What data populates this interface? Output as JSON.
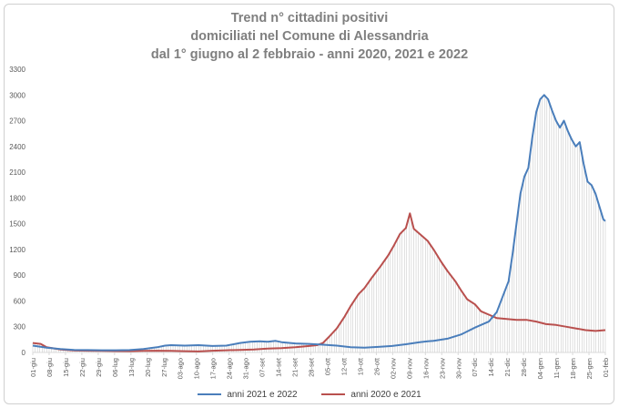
{
  "title_lines": [
    "Trend n° cittadini positivi",
    "domiciliati nel Comune di Alessandria",
    "dal 1° giugno al 2 febbraio - anni 2020, 2021 e 2022"
  ],
  "colors": {
    "series_2021_2022": "#4a7ebb",
    "series_2020_2021": "#b9504e",
    "drop_lines": "#a6a6a6",
    "axis": "#d9d9d9"
  },
  "chart_data": {
    "type": "line",
    "title": "Trend n° cittadini positivi domiciliati nel Comune di Alessandria dal 1° giugno al 2 febbraio - anni 2020, 2021 e 2022",
    "xlabel": "",
    "ylabel": "",
    "ylim": [
      0,
      3300
    ],
    "yticks": [
      0,
      300,
      600,
      900,
      1200,
      1500,
      1800,
      2100,
      2400,
      2700,
      3000,
      3300
    ],
    "x_tick_labels": [
      "01-giu",
      "08-giu",
      "15-giu",
      "22-giu",
      "29-giu",
      "06-lug",
      "13-lug",
      "20-lug",
      "27-lug",
      "03-ago",
      "10-ago",
      "17-ago",
      "24-ago",
      "31-ago",
      "07-set",
      "14-set",
      "21-set",
      "28-set",
      "05-ott",
      "12-ott",
      "19-ott",
      "26-ott",
      "02-nov",
      "09-nov",
      "16-nov",
      "23-nov",
      "30-nov",
      "07-dic",
      "14-dic",
      "21-dic",
      "28-dic",
      "04-gen",
      "11-gen",
      "18-gen",
      "25-gen",
      "01-feb"
    ],
    "x_unit": "days from 01-giu",
    "grid": false,
    "legend_position": "bottom",
    "series": [
      {
        "name": "anni 2021 e 2022",
        "points": [
          [
            0,
            80
          ],
          [
            7,
            55
          ],
          [
            14,
            40
          ],
          [
            21,
            30
          ],
          [
            28,
            28
          ],
          [
            35,
            25
          ],
          [
            42,
            25
          ],
          [
            49,
            28
          ],
          [
            56,
            40
          ],
          [
            63,
            60
          ],
          [
            67,
            80
          ],
          [
            70,
            85
          ],
          [
            77,
            80
          ],
          [
            84,
            85
          ],
          [
            91,
            75
          ],
          [
            98,
            80
          ],
          [
            105,
            110
          ],
          [
            110,
            125
          ],
          [
            115,
            130
          ],
          [
            119,
            125
          ],
          [
            123,
            135
          ],
          [
            126,
            120
          ],
          [
            133,
            105
          ],
          [
            140,
            100
          ],
          [
            147,
            90
          ],
          [
            154,
            80
          ],
          [
            161,
            60
          ],
          [
            168,
            55
          ],
          [
            175,
            65
          ],
          [
            182,
            75
          ],
          [
            189,
            95
          ],
          [
            196,
            120
          ],
          [
            200,
            130
          ],
          [
            203,
            135
          ],
          [
            210,
            160
          ],
          [
            217,
            210
          ],
          [
            224,
            290
          ],
          [
            231,
            360
          ],
          [
            235,
            470
          ],
          [
            238,
            650
          ],
          [
            241,
            830
          ],
          [
            243,
            1150
          ],
          [
            245,
            1500
          ],
          [
            247,
            1850
          ],
          [
            249,
            2050
          ],
          [
            251,
            2150
          ],
          [
            253,
            2500
          ],
          [
            255,
            2800
          ],
          [
            257,
            2950
          ],
          [
            259,
            3000
          ],
          [
            261,
            2950
          ],
          [
            263,
            2820
          ],
          [
            265,
            2700
          ],
          [
            267,
            2620
          ],
          [
            269,
            2700
          ],
          [
            271,
            2580
          ],
          [
            273,
            2480
          ],
          [
            275,
            2400
          ],
          [
            277,
            2450
          ],
          [
            279,
            2200
          ],
          [
            281,
            1990
          ],
          [
            283,
            1950
          ],
          [
            285,
            1850
          ],
          [
            287,
            1700
          ],
          [
            289,
            1550
          ],
          [
            290,
            1530
          ]
        ]
      },
      {
        "name": "anni 2020 e 2021",
        "points": [
          [
            0,
            110
          ],
          [
            4,
            100
          ],
          [
            7,
            60
          ],
          [
            14,
            35
          ],
          [
            21,
            22
          ],
          [
            28,
            20
          ],
          [
            35,
            18
          ],
          [
            42,
            16
          ],
          [
            49,
            15
          ],
          [
            56,
            18
          ],
          [
            63,
            20
          ],
          [
            70,
            18
          ],
          [
            77,
            15
          ],
          [
            84,
            12
          ],
          [
            91,
            20
          ],
          [
            98,
            25
          ],
          [
            105,
            30
          ],
          [
            112,
            35
          ],
          [
            119,
            45
          ],
          [
            126,
            50
          ],
          [
            133,
            60
          ],
          [
            140,
            75
          ],
          [
            144,
            85
          ],
          [
            147,
            110
          ],
          [
            150,
            180
          ],
          [
            154,
            280
          ],
          [
            158,
            420
          ],
          [
            161,
            540
          ],
          [
            165,
            680
          ],
          [
            168,
            750
          ],
          [
            172,
            880
          ],
          [
            176,
            1000
          ],
          [
            180,
            1130
          ],
          [
            183,
            1250
          ],
          [
            186,
            1380
          ],
          [
            189,
            1450
          ],
          [
            191,
            1620
          ],
          [
            193,
            1440
          ],
          [
            196,
            1380
          ],
          [
            200,
            1300
          ],
          [
            203,
            1200
          ],
          [
            207,
            1050
          ],
          [
            210,
            950
          ],
          [
            214,
            830
          ],
          [
            217,
            720
          ],
          [
            220,
            620
          ],
          [
            224,
            560
          ],
          [
            227,
            480
          ],
          [
            231,
            440
          ],
          [
            235,
            400
          ],
          [
            240,
            390
          ],
          [
            245,
            380
          ],
          [
            250,
            380
          ],
          [
            255,
            360
          ],
          [
            260,
            330
          ],
          [
            265,
            320
          ],
          [
            270,
            300
          ],
          [
            275,
            280
          ],
          [
            280,
            260
          ],
          [
            285,
            250
          ],
          [
            290,
            260
          ]
        ]
      }
    ]
  }
}
